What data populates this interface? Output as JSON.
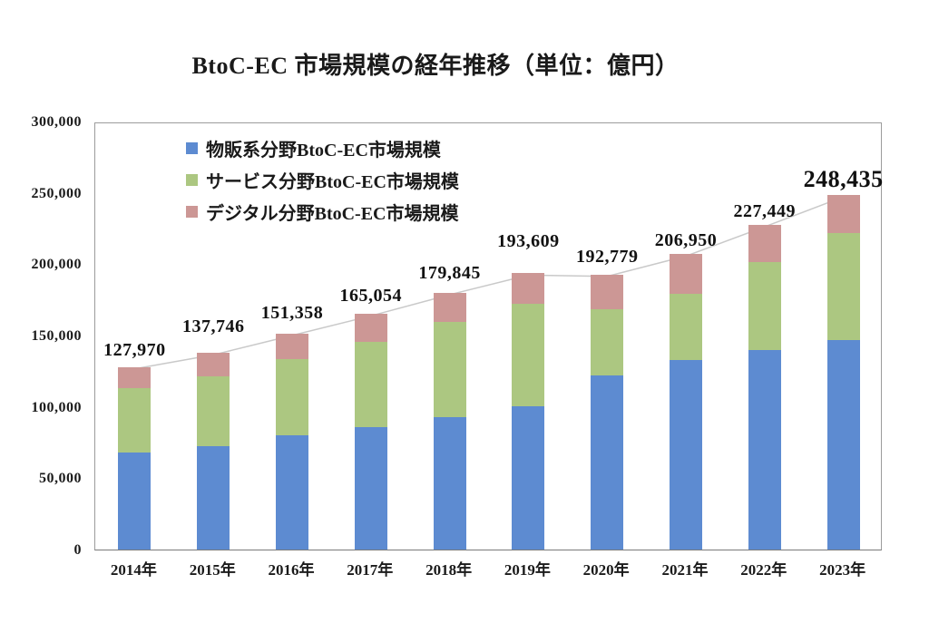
{
  "chart_data": {
    "type": "bar",
    "stacked": true,
    "title": "BtoC-EC 市場規模の経年推移（単位：億円）",
    "categories": [
      "2014年",
      "2015年",
      "2016年",
      "2017年",
      "2018年",
      "2019年",
      "2020年",
      "2021年",
      "2022年",
      "2023年"
    ],
    "series": [
      {
        "name": "物販系分野BtoC-EC市場規模",
        "color": "#5D8BD1",
        "values": [
          68043,
          72398,
          80043,
          86008,
          92992,
          100515,
          122333,
          132865,
          139997,
          146760
        ]
      },
      {
        "name": "サービス分野BtoC-EC市場規模",
        "color": "#ACC781",
        "values": [
          44816,
          49014,
          53532,
          59568,
          66471,
          71672,
          45832,
          46424,
          61477,
          75169
        ]
      },
      {
        "name": "デジタル分野BtoC-EC市場規模",
        "color": "#CC9795",
        "values": [
          15111,
          16334,
          17782,
          19478,
          20382,
          21422,
          24614,
          27661,
          25974,
          26506
        ]
      }
    ],
    "totals": [
      127970,
      137746,
      151358,
      165054,
      179845,
      193609,
      192779,
      206950,
      227449,
      248435
    ],
    "total_labels": [
      "127,970",
      "137,746",
      "151,358",
      "165,054",
      "179,845",
      "193,609",
      "192,779",
      "206,950",
      "227,449",
      "248,435"
    ],
    "ylim": [
      0,
      300000
    ],
    "ytick_values": [
      0,
      50000,
      100000,
      150000,
      200000,
      250000,
      300000
    ],
    "ytick_labels": [
      "0",
      "50,000",
      "100,000",
      "150,000",
      "200,000",
      "250,000",
      "300,000"
    ],
    "xlabel": "",
    "ylabel": "",
    "grid": false,
    "legend_position": "inside-top-left",
    "line_overlay": {
      "connects": "totals",
      "color": "#c9c9c9"
    },
    "plot_border_color": "#9c9c9c"
  }
}
